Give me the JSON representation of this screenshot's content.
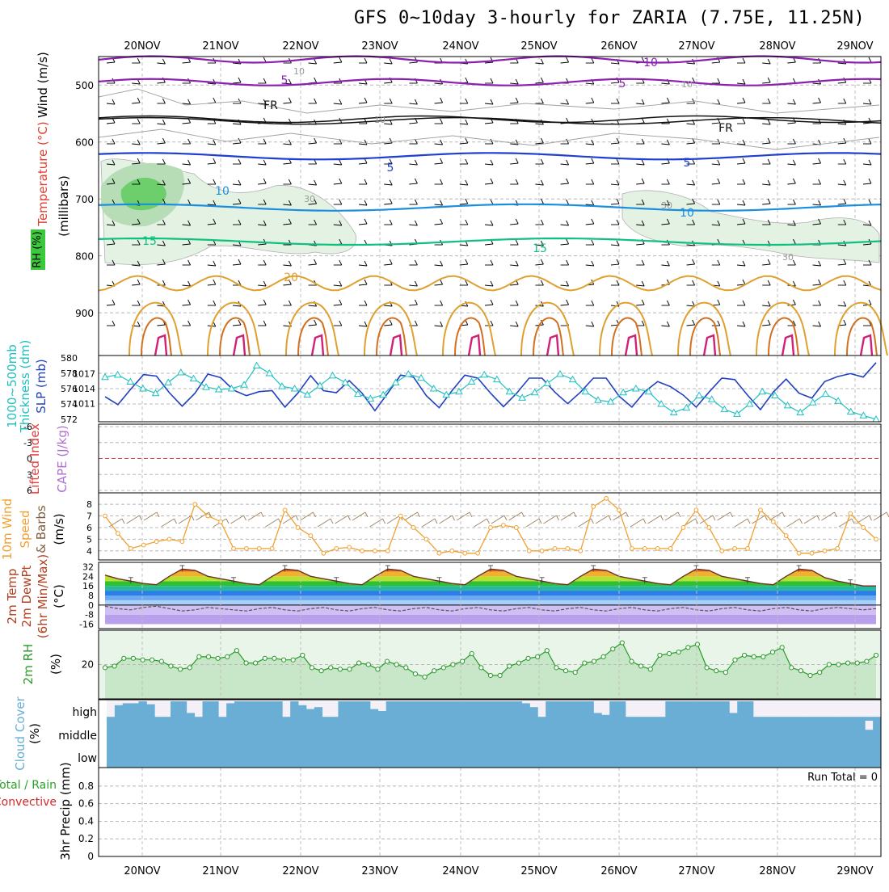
{
  "title": "GFS 0~10day 3-hourly for ZARIA (7.75E, 11.25N)",
  "dates": [
    "20NOV",
    "21NOV",
    "22NOV",
    "23NOV",
    "24NOV",
    "25NOV",
    "26NOV",
    "27NOV",
    "28NOV",
    "29NOV"
  ],
  "colors": {
    "temp5": "#8a1fb0",
    "temp0": "#111111",
    "tempm5": "#1f3fd0",
    "tempm10": "#1a8fe0",
    "tempm15": "#10c080",
    "temp20": "#e0a030",
    "temp25": "#d07020",
    "temp30": "#d0207a",
    "rh": "#3cc83c",
    "thick": "#20c0c0",
    "slp": "#2040c0",
    "wind": "#f0a030",
    "rh2m": "#2a9a2a",
    "cloud": "#6aaed6",
    "precip_total": "#2ca02c",
    "precip_conv": "#d62728",
    "cape": "#b070d0",
    "li": "#e04040"
  },
  "chart_data": [
    {
      "type": "contour",
      "panel": "upper-air",
      "ylabel_parts": [
        "Wind (m/s)",
        "Temperature (°C)",
        "RH (%)",
        "(millibars)"
      ],
      "yticks": [
        500,
        600,
        700,
        800,
        900
      ],
      "contour_labels": [
        "10",
        "5",
        "10",
        "5",
        "FR",
        "FR",
        "5",
        "5",
        "10",
        "10",
        "15",
        "15",
        "20",
        "30",
        "30",
        "30",
        "10",
        "10"
      ],
      "isotherms": [
        {
          "name": "-10",
          "level_mb": 455
        },
        {
          "name": "-5",
          "level_mb": 495
        },
        {
          "name": "0 (FR)",
          "level_mb": 560
        },
        {
          "name": "5",
          "level_mb": 625
        },
        {
          "name": "10",
          "level_mb": 715
        },
        {
          "name": "15",
          "level_mb": 775
        },
        {
          "name": "20",
          "level_mb": 850
        }
      ]
    },
    {
      "type": "line",
      "panel": "thickness-slp",
      "ylabel_left": [
        "1000~500mb",
        "Thickness (dm)"
      ],
      "ylabel_right": "SLP (mb)",
      "yticks_left": [
        "580",
        "578",
        "576",
        "574",
        "572"
      ],
      "yticks_right": [
        "1017",
        "1014",
        "1011"
      ],
      "series": [
        {
          "name": "Thickness",
          "values": [
            577.5,
            577.8,
            576.9,
            576.0,
            575.4,
            576.8,
            578.1,
            577.3,
            576.2,
            575.9,
            576.0,
            576.5,
            579.0,
            578.0,
            576.3,
            576.0,
            575.2,
            576.4,
            577.7,
            576.8,
            575.3,
            574.7,
            575.2,
            576.8,
            577.9,
            577.4,
            576.0,
            575.2,
            575.6,
            576.9,
            577.8,
            577.2,
            575.6,
            574.8,
            575.5,
            576.7,
            577.9,
            577.2,
            575.6,
            574.5,
            574.3,
            575.5,
            576.0,
            575.6,
            574.0,
            572.9,
            573.5,
            575.1,
            574.6,
            573.3,
            572.7,
            574.0,
            575.6,
            575.1,
            573.8,
            572.9,
            574.2,
            575.3,
            574.4,
            573.0,
            572.5,
            572.0
          ]
        },
        {
          "name": "SLP",
          "values": [
            1012.4,
            1010.8,
            1013.9,
            1016.8,
            1016.5,
            1013.2,
            1010.5,
            1013.1,
            1016.9,
            1016.2,
            1013.7,
            1012.6,
            1013.4,
            1013.6,
            1010.3,
            1013.1,
            1016.6,
            1013.6,
            1013.2,
            1015.6,
            1013.1,
            1009.6,
            1013.1,
            1016.7,
            1016.3,
            1012.6,
            1010.2,
            1013.6,
            1016.7,
            1016.1,
            1013.1,
            1010.4,
            1013.0,
            1016.1,
            1016.1,
            1013.3,
            1011.0,
            1013.3,
            1016.1,
            1016.1,
            1012.5,
            1010.3,
            1013.4,
            1015.4,
            1014.4,
            1012.7,
            1010.3,
            1013.3,
            1016.1,
            1015.8,
            1012.7,
            1009.8,
            1013.3,
            1015.9,
            1013.1,
            1012.1,
            1015.4,
            1016.4,
            1017.0,
            1016.3,
            1019.2
          ]
        }
      ]
    },
    {
      "type": "line",
      "panel": "cape-li",
      "ylabel": [
        "Lifted Index",
        "CAPE (J/kg)"
      ],
      "yticks": [
        "-6",
        "-3",
        "0",
        "3",
        "6"
      ],
      "series": [
        {
          "name": "Lifted Index",
          "values": []
        },
        {
          "name": "CAPE",
          "values": []
        }
      ]
    },
    {
      "type": "line",
      "panel": "wind10m",
      "ylabel": [
        "10m Wind",
        "Speed",
        "& Barbs",
        "(m/s)"
      ],
      "yticks": [
        "8",
        "7",
        "6",
        "5",
        "4"
      ],
      "ylim": [
        3.5,
        8.7
      ],
      "series": [
        {
          "name": "10m Wind Speed",
          "values": [
            7.0,
            5.5,
            4.2,
            4.5,
            4.8,
            5.0,
            4.8,
            8.0,
            7.0,
            6.5,
            4.2,
            4.2,
            4.2,
            4.2,
            7.5,
            6.0,
            5.3,
            3.8,
            4.2,
            4.3,
            4.0,
            4.0,
            4.0,
            7.0,
            6.0,
            5.0,
            3.8,
            4.0,
            3.8,
            3.8,
            6.0,
            6.2,
            6.0,
            4.0,
            4.0,
            4.2,
            4.2,
            4.0,
            7.8,
            8.5,
            7.5,
            4.2,
            4.2,
            4.2,
            4.2,
            6.0,
            7.5,
            6.0,
            4.0,
            4.2,
            4.2,
            7.5,
            6.5,
            5.3,
            3.8,
            3.8,
            4.0,
            4.2,
            7.2,
            6.0,
            5.0
          ]
        }
      ]
    },
    {
      "type": "area",
      "panel": "temp2m",
      "ylabel": [
        "2m Temp",
        "2m DewPt",
        "(6hr Min/Max)",
        "(°C)"
      ],
      "yticks": [
        "32",
        "24",
        "16",
        "8",
        "0",
        "-8",
        "-16"
      ],
      "series": [
        {
          "name": "2m Temp",
          "values": [
            25,
            22,
            20,
            18,
            17,
            24,
            30,
            29,
            24,
            22,
            20,
            18,
            17,
            24,
            30,
            29,
            24,
            22,
            20,
            18,
            17,
            24,
            30,
            29,
            24,
            22,
            20,
            18,
            17,
            24,
            30,
            29,
            24,
            22,
            20,
            18,
            17,
            24,
            30,
            29,
            24,
            22,
            20,
            18,
            17,
            24,
            30,
            29,
            24,
            22,
            20,
            18,
            17,
            24,
            30,
            29,
            23,
            20,
            18,
            16,
            16
          ]
        },
        {
          "name": "2m DewPt",
          "values": [
            -1,
            -3,
            -4,
            -2,
            -1,
            -3,
            -5,
            -4,
            -2,
            -3,
            -4,
            -5,
            -3,
            -2,
            -4,
            -5,
            -3,
            -2,
            -4,
            -5,
            -3,
            -2,
            -4,
            -5,
            -3,
            -2,
            -4,
            -5,
            -3,
            -2,
            -4,
            -5,
            -3,
            -2,
            -4,
            -5,
            -3,
            -2,
            -4,
            -5,
            -3,
            -2,
            -4,
            -5,
            -3,
            -2,
            -4,
            -5,
            -3,
            -2,
            -4,
            -5,
            -3,
            -2,
            -4,
            -5,
            -3,
            -2,
            -3,
            -4,
            -3
          ]
        }
      ]
    },
    {
      "type": "area",
      "panel": "rh2m",
      "ylabel": [
        "2m RH",
        "(%)"
      ],
      "yticks": [
        "20"
      ],
      "series": [
        {
          "name": "2m RH",
          "values": [
            18,
            19,
            24,
            24,
            23,
            23,
            22,
            19,
            17,
            18,
            25,
            25,
            24,
            25,
            29,
            21,
            21,
            24,
            24,
            23,
            23,
            26,
            18,
            16,
            18,
            17,
            17,
            21,
            20,
            17,
            22,
            20,
            18,
            14,
            12,
            16,
            18,
            20,
            22,
            27,
            18,
            13,
            13,
            19,
            21,
            24,
            25,
            29,
            18,
            16,
            15,
            21,
            22,
            25,
            30,
            34,
            22,
            19,
            17,
            26,
            27,
            28,
            31,
            33,
            18,
            16,
            15,
            23,
            26,
            25,
            25,
            28,
            31,
            18,
            16,
            13,
            15,
            20,
            20,
            21,
            21,
            22,
            26
          ]
        }
      ]
    },
    {
      "type": "bar",
      "panel": "cloud",
      "ylabel": [
        "Cloud Cover",
        "(%)"
      ],
      "yticks": [
        "high",
        "middle",
        "low"
      ],
      "series": [
        {
          "name": "high",
          "values": [
            20,
            80,
            90,
            90,
            100,
            85,
            20,
            20,
            100,
            100,
            40,
            20,
            100,
            100,
            20,
            90,
            100,
            100,
            100,
            100,
            100,
            100,
            20,
            100,
            80,
            60,
            70,
            20,
            20,
            100,
            100,
            100,
            100,
            60,
            50,
            100,
            100,
            100,
            100,
            100,
            100,
            100,
            100,
            100,
            100,
            100,
            100,
            100,
            100,
            100,
            100,
            100,
            90,
            70,
            20,
            100,
            100,
            100,
            100,
            100,
            100,
            40,
            30,
            100,
            100,
            20,
            20,
            20,
            20,
            20,
            100,
            100,
            100,
            100,
            100,
            100,
            100,
            100,
            40,
            100,
            100,
            20,
            20,
            20,
            20,
            20,
            20,
            20,
            20,
            20,
            20,
            20,
            20,
            20,
            20,
            20,
            20
          ]
        },
        {
          "name": "middle",
          "values": [
            100,
            100,
            100,
            100,
            100,
            100,
            100,
            100,
            100,
            100,
            100,
            100,
            100,
            100,
            100,
            100,
            100,
            100,
            100,
            100,
            100,
            100,
            100,
            100,
            100,
            100,
            100,
            100,
            100,
            100,
            100,
            100,
            100,
            100,
            100,
            100,
            100,
            100,
            100,
            100,
            100,
            100,
            100,
            100,
            100,
            100,
            100,
            100,
            100,
            100,
            100,
            100,
            100,
            100,
            100,
            100,
            100,
            100,
            100,
            100,
            100,
            100,
            100,
            100,
            100,
            100,
            100,
            100,
            100,
            100,
            100,
            100,
            100,
            100,
            100,
            100,
            100,
            100,
            100,
            100,
            100,
            100,
            100,
            100,
            100,
            100,
            100,
            100,
            100,
            100,
            100,
            100,
            100,
            100,
            100,
            60,
            100
          ]
        },
        {
          "name": "low",
          "values": [
            100,
            100,
            100,
            100,
            100,
            100,
            100,
            100,
            100,
            100,
            100,
            100,
            100,
            100,
            100,
            100,
            100,
            100,
            100,
            100,
            100,
            100,
            100,
            100,
            100,
            100,
            100,
            100,
            100,
            100,
            100,
            100,
            100,
            100,
            100,
            100,
            100,
            100,
            100,
            100,
            100,
            100,
            100,
            100,
            100,
            100,
            100,
            100,
            100,
            100,
            100,
            100,
            100,
            100,
            100,
            100,
            100,
            100,
            100,
            100,
            100,
            100,
            100,
            100,
            100,
            100,
            100,
            100,
            100,
            100,
            100,
            100,
            100,
            100,
            100,
            100,
            100,
            100,
            100,
            100,
            100,
            100,
            100,
            100,
            100,
            100,
            100,
            100,
            100,
            100,
            100,
            100,
            100,
            100,
            100,
            100,
            100
          ]
        }
      ]
    },
    {
      "type": "bar",
      "panel": "precip",
      "ylabel": [
        "Total / Rain",
        "Convective",
        "3hr Precip (mm)"
      ],
      "yticks": [
        "0.8",
        "0.6",
        "0.4",
        "0.2",
        "0"
      ],
      "ylim": [
        0,
        0.9
      ],
      "annotation": "Run Total = 0",
      "series": [
        {
          "name": "Total / Rain",
          "values": []
        },
        {
          "name": "Convective",
          "values": []
        }
      ]
    }
  ]
}
